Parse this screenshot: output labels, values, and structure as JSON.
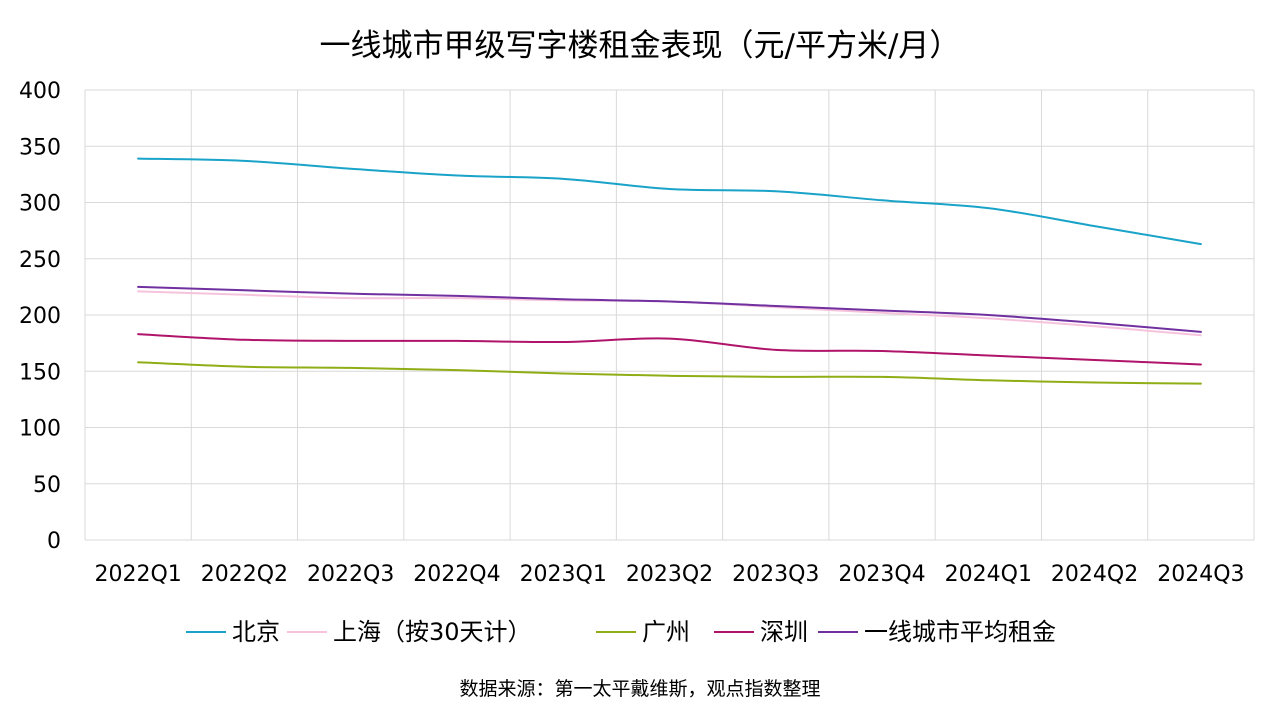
{
  "chart_data": {
    "type": "line",
    "title": "一线城市甲级写字楼租金表现（元/平方米/月）",
    "categories": [
      "2022Q1",
      "2022Q2",
      "2022Q3",
      "2022Q4",
      "2023Q1",
      "2023Q2",
      "2023Q3",
      "2023Q4",
      "2024Q1",
      "2024Q2",
      "2024Q3"
    ],
    "y_ticks": [
      "0",
      "50",
      "100",
      "150",
      "200",
      "250",
      "300",
      "350",
      "400"
    ],
    "ylim": [
      0,
      400
    ],
    "grid": true,
    "legend_position": "bottom",
    "series": [
      {
        "name": "北京",
        "color": "#1aa3c8",
        "values": [
          339,
          337,
          330,
          324,
          321,
          312,
          310,
          302,
          295,
          279,
          263
        ]
      },
      {
        "name": "上海（按30天计）",
        "color": "#f6c3dc",
        "values": [
          221,
          218,
          215,
          215,
          213,
          212,
          207,
          202,
          197,
          190,
          182
        ]
      },
      {
        "name": "广州",
        "color": "#8fad15",
        "values": [
          158,
          154,
          153,
          151,
          148,
          146,
          145,
          145,
          142,
          140,
          139
        ]
      },
      {
        "name": "深圳",
        "color": "#b0146a",
        "values": [
          183,
          178,
          177,
          177,
          176,
          179,
          169,
          168,
          164,
          160,
          156
        ]
      },
      {
        "name": "一线城市平均租金",
        "color": "#7030a0",
        "values": [
          225,
          222,
          219,
          217,
          214,
          212,
          208,
          204,
          200,
          193,
          185
        ]
      }
    ],
    "source_note": "数据来源：第一太平戴维斯，观点指数整理"
  }
}
